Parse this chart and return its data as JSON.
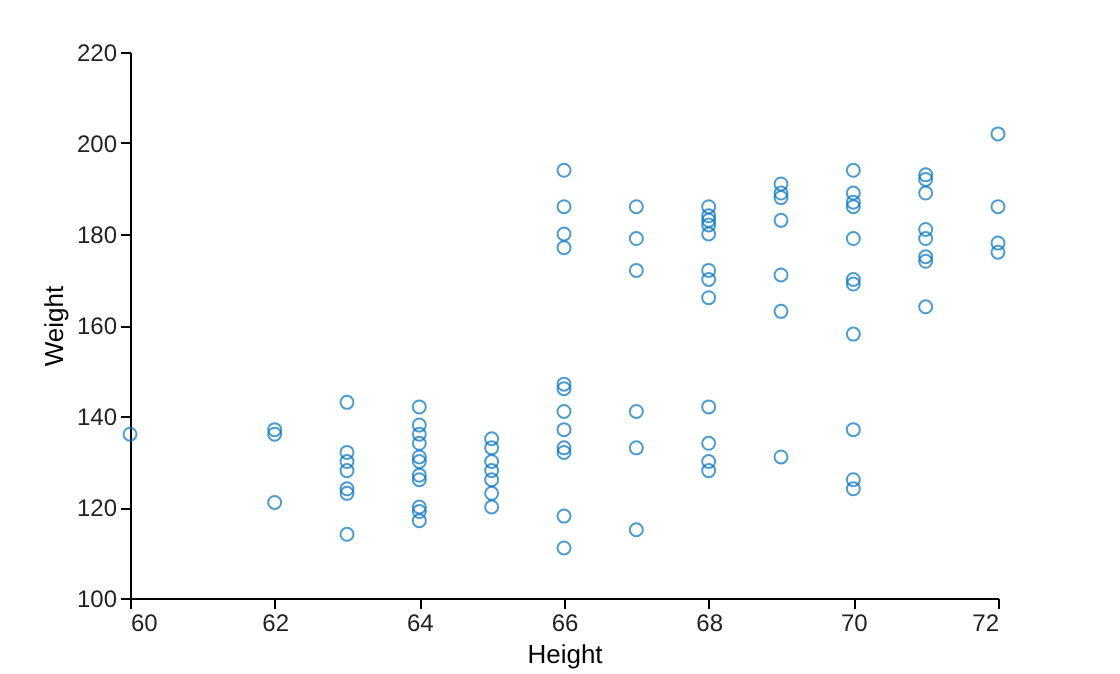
{
  "chart_data": {
    "type": "scatter",
    "xlabel": "Height",
    "ylabel": "Weight",
    "xlim": [
      60,
      72
    ],
    "xticks": [
      60,
      62,
      64,
      66,
      68,
      70,
      72
    ],
    "ylim": [
      100,
      220
    ],
    "yticks": [
      100,
      120,
      140,
      160,
      180,
      200,
      220
    ],
    "marker": "circle",
    "grid": false,
    "series": [
      {
        "color": "#0072bd",
        "x": [
          60,
          62,
          62,
          62,
          63,
          63,
          63,
          63,
          63,
          63,
          63,
          64,
          64,
          64,
          64,
          64,
          64,
          64,
          64,
          64,
          64,
          64,
          65,
          65,
          65,
          65,
          65,
          65,
          65,
          66,
          66,
          66,
          66,
          66,
          66,
          66,
          66,
          66,
          66,
          66,
          66,
          67,
          67,
          67,
          67,
          67,
          67,
          68,
          68,
          68,
          68,
          68,
          68,
          68,
          68,
          68,
          68,
          68,
          68,
          69,
          69,
          69,
          69,
          69,
          69,
          69,
          70,
          70,
          70,
          70,
          70,
          70,
          70,
          70,
          70,
          70,
          70,
          71,
          71,
          71,
          71,
          71,
          71,
          71,
          71,
          72,
          72,
          72,
          72
        ],
        "values": [
          136,
          137,
          136,
          121,
          143,
          132,
          130,
          128,
          124,
          123,
          114,
          142,
          138,
          136,
          134,
          131,
          130,
          127,
          126,
          120,
          119,
          117,
          135,
          133,
          130,
          128,
          126,
          123,
          120,
          194,
          186,
          180,
          177,
          147,
          146,
          141,
          137,
          133,
          132,
          118,
          111,
          186,
          179,
          172,
          141,
          133,
          115,
          186,
          184,
          183,
          182,
          180,
          172,
          170,
          166,
          142,
          134,
          130,
          128,
          191,
          189,
          188,
          183,
          171,
          163,
          131,
          194,
          189,
          187,
          186,
          179,
          170,
          169,
          158,
          137,
          126,
          124,
          193,
          192,
          189,
          181,
          179,
          175,
          174,
          164,
          202,
          186,
          178,
          176
        ]
      }
    ]
  }
}
